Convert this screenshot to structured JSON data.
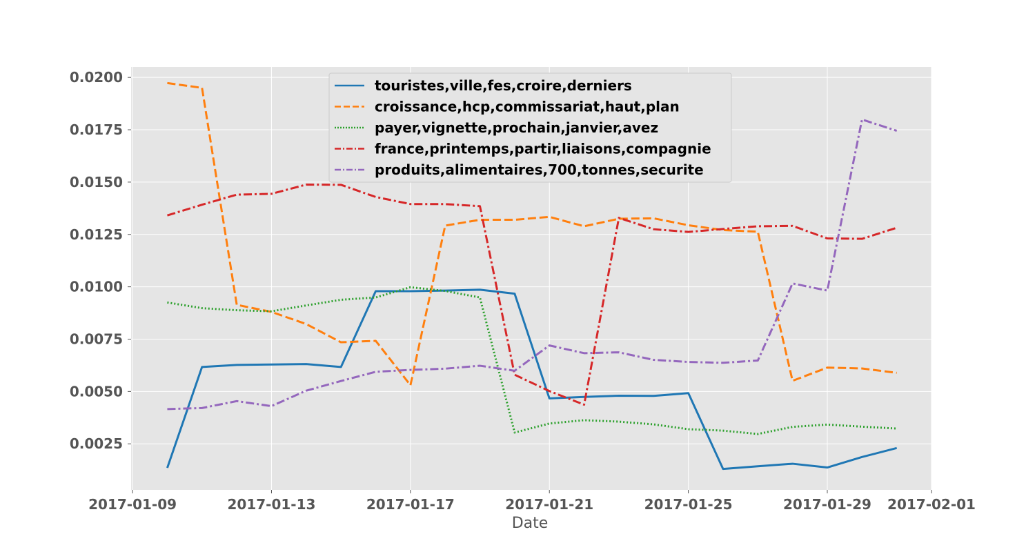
{
  "chart_data": {
    "type": "line",
    "xlabel": "Date",
    "ylabel": "",
    "x_type": "date",
    "xlim": [
      "2017-01-08T23:00",
      "2017-02-01"
    ],
    "ylim": [
      0.0003,
      0.0205
    ],
    "grid": true,
    "legend_position": "top-center",
    "x_ticks": [
      "2017-01-09",
      "2017-01-13",
      "2017-01-17",
      "2017-01-21",
      "2017-01-25",
      "2017-01-29",
      "2017-02-01"
    ],
    "y_ticks": [
      "0.0025",
      "0.0050",
      "0.0075",
      "0.0100",
      "0.0125",
      "0.0150",
      "0.0175",
      "0.0200"
    ],
    "x": [
      "2017-01-10",
      "2017-01-11",
      "2017-01-12",
      "2017-01-13",
      "2017-01-14",
      "2017-01-15",
      "2017-01-16",
      "2017-01-17",
      "2017-01-18",
      "2017-01-19",
      "2017-01-20",
      "2017-01-21",
      "2017-01-22",
      "2017-01-23",
      "2017-01-24",
      "2017-01-25",
      "2017-01-26",
      "2017-01-27",
      "2017-01-28",
      "2017-01-29",
      "2017-01-30",
      "2017-01-31"
    ],
    "series": [
      {
        "name": "touristes,ville,fes,croire,derniers",
        "color": "#1f77b4",
        "style": "solid",
        "values": [
          0.00135,
          0.00617,
          0.00627,
          0.00629,
          0.00631,
          0.00617,
          0.00979,
          0.00979,
          0.00982,
          0.00986,
          0.00967,
          0.00467,
          0.00474,
          0.0048,
          0.00479,
          0.00492,
          0.0013,
          0.00143,
          0.00155,
          0.00137,
          0.00187,
          0.0023
        ]
      },
      {
        "name": "croissance,hcp,commissariat,haut,plan",
        "color": "#ff7f0e",
        "style": "dashed",
        "values": [
          0.01973,
          0.0195,
          0.00914,
          0.0088,
          0.00822,
          0.00735,
          0.00742,
          0.0053,
          0.01292,
          0.0132,
          0.0132,
          0.01334,
          0.01289,
          0.01325,
          0.01327,
          0.01294,
          0.01271,
          0.01263,
          0.00551,
          0.00614,
          0.0061,
          0.00589
        ]
      },
      {
        "name": "payer,vignette,prochain,janvier,avez",
        "color": "#2ca02c",
        "style": "dotted",
        "values": [
          0.00925,
          0.00898,
          0.00888,
          0.00883,
          0.00911,
          0.00938,
          0.00949,
          0.00998,
          0.0098,
          0.00949,
          0.00304,
          0.00347,
          0.00363,
          0.00356,
          0.00343,
          0.0032,
          0.00313,
          0.00297,
          0.00331,
          0.00342,
          0.00332,
          0.00323
        ]
      },
      {
        "name": "france,printemps,partir,liaisons,compagnie",
        "color": "#d62728",
        "style": "dashdot",
        "values": [
          0.01341,
          0.01392,
          0.0144,
          0.01444,
          0.01488,
          0.01487,
          0.01429,
          0.01395,
          0.01395,
          0.01385,
          0.0058,
          0.00502,
          0.00437,
          0.01329,
          0.01275,
          0.01262,
          0.01276,
          0.01289,
          0.01291,
          0.01231,
          0.01229,
          0.01282
        ]
      },
      {
        "name": "produits,alimentaires,700,tonnes,securite",
        "color": "#9467bd",
        "style": "dashdot",
        "values": [
          0.00416,
          0.00421,
          0.00454,
          0.0043,
          0.00504,
          0.0055,
          0.00594,
          0.00603,
          0.00609,
          0.00623,
          0.00599,
          0.0072,
          0.00683,
          0.00687,
          0.00651,
          0.00641,
          0.00637,
          0.00648,
          0.01016,
          0.00982,
          0.01799,
          0.01745
        ]
      }
    ]
  }
}
